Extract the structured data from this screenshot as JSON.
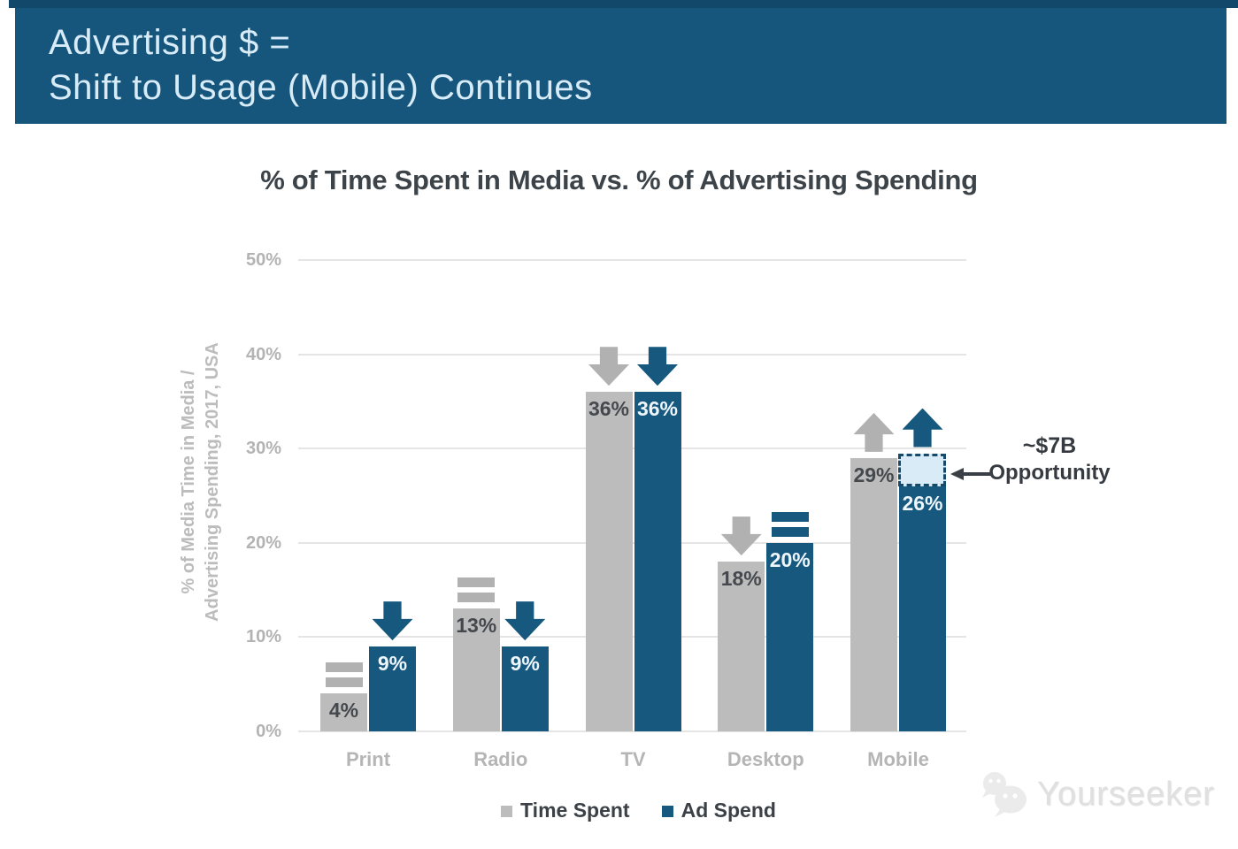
{
  "banner": {
    "line1": "Advertising $ =",
    "line2": "Shift to Usage (Mobile) Continues"
  },
  "chart_title": "% of Time Spent in Media vs. % of Advertising Spending",
  "y_axis_title_line1": "% of Media Time in Media /",
  "y_axis_title_line2": "Advertising Spending, 2017, USA",
  "watermark": {
    "text": "Yourseeker"
  },
  "colors": {
    "banner_bg": "#16567d",
    "top_strip": "#12496a",
    "bar_gray": "#bcbcbc",
    "bar_blue": "#17587e",
    "gridline": "#e5e5e5",
    "axis_text_gray": "#b3b3b3",
    "dark_text": "#3d4449",
    "opportunity_box_fill": "#d8ebf7",
    "opportunity_box_border": "#164a6b"
  },
  "chart_data": {
    "type": "bar",
    "title": "% of Time Spent in Media vs. % of Advertising Spending",
    "categories": [
      "Print",
      "Radio",
      "TV",
      "Desktop",
      "Mobile"
    ],
    "series": [
      {
        "name": "Time Spent",
        "color": "#bcbcbc",
        "indicator_color": "#b1b1b1",
        "label_color": "#45494e",
        "values": [
          4,
          13,
          36,
          18,
          29
        ],
        "trends": [
          "flat",
          "flat",
          "down",
          "down",
          "up"
        ]
      },
      {
        "name": "Ad Spend",
        "color": "#17587e",
        "indicator_color": "#17587e",
        "label_color": "#eef6fb",
        "values": [
          9,
          9,
          36,
          20,
          26
        ],
        "trends": [
          "down",
          "down",
          "down",
          "flat",
          "up"
        ]
      }
    ],
    "ylabel": "% of Media Time in Media / Advertising Spending, 2017, USA",
    "yticks": [
      0,
      10,
      20,
      30,
      40,
      50
    ],
    "ylim": [
      0,
      50
    ],
    "grid": true,
    "legend_position": "bottom",
    "annotation": {
      "label_line1": "~$7B",
      "label_line2": "Opportunity",
      "category": "Mobile",
      "series": "Ad Spend",
      "box_range": [
        26,
        29.5
      ],
      "box_fill": "#d8ebf7",
      "box_border": "#164a6b"
    }
  }
}
